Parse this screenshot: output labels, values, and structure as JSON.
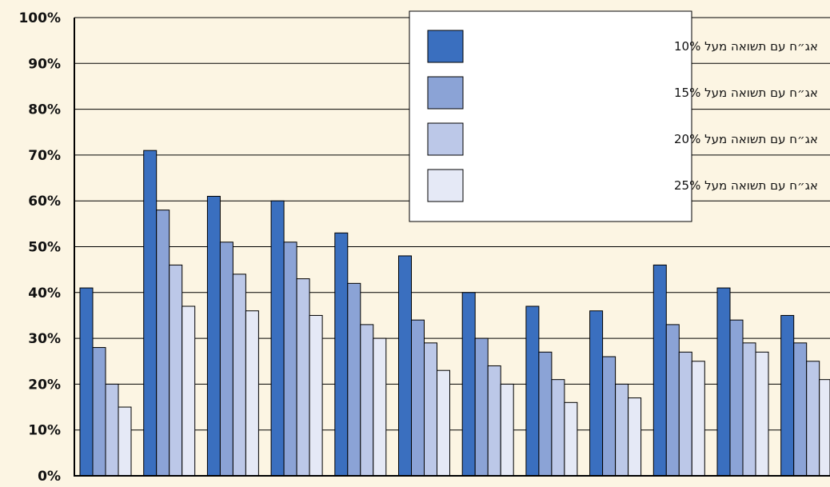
{
  "chart_data": {
    "type": "bar",
    "title": "",
    "xlabel": "",
    "ylabel": "",
    "ylim": [
      0,
      100
    ],
    "y_tick_labels": [
      "0%",
      "10%",
      "20%",
      "30%",
      "40%",
      "50%",
      "60%",
      "70%",
      "80%",
      "90%",
      "100%"
    ],
    "grid": true,
    "legend_position": "top-right",
    "categories": [
      "",
      "",
      "",
      "",
      "",
      "",
      "",
      "",
      "",
      "",
      "",
      ""
    ],
    "series": [
      {
        "name": "אג״ח עם תשואה מעל 10%",
        "color": "#3a6fbf",
        "values": [
          41,
          71,
          61,
          60,
          53,
          48,
          40,
          37,
          36,
          46,
          41,
          35
        ]
      },
      {
        "name": "אג״ח עם תשואה מעל 15%",
        "color": "#8ba3d6",
        "values": [
          28,
          58,
          51,
          51,
          42,
          34,
          30,
          27,
          26,
          33,
          34,
          29
        ]
      },
      {
        "name": "אג״ח עם תשואה מעל 20%",
        "color": "#bcc8e8",
        "values": [
          20,
          46,
          44,
          43,
          33,
          29,
          24,
          21,
          20,
          27,
          29,
          25
        ]
      },
      {
        "name": "אג״ח עם תשואה מעל 25%",
        "color": "#e5e9f6",
        "values": [
          15,
          37,
          36,
          35,
          30,
          23,
          20,
          16,
          17,
          25,
          27,
          21
        ]
      }
    ]
  }
}
